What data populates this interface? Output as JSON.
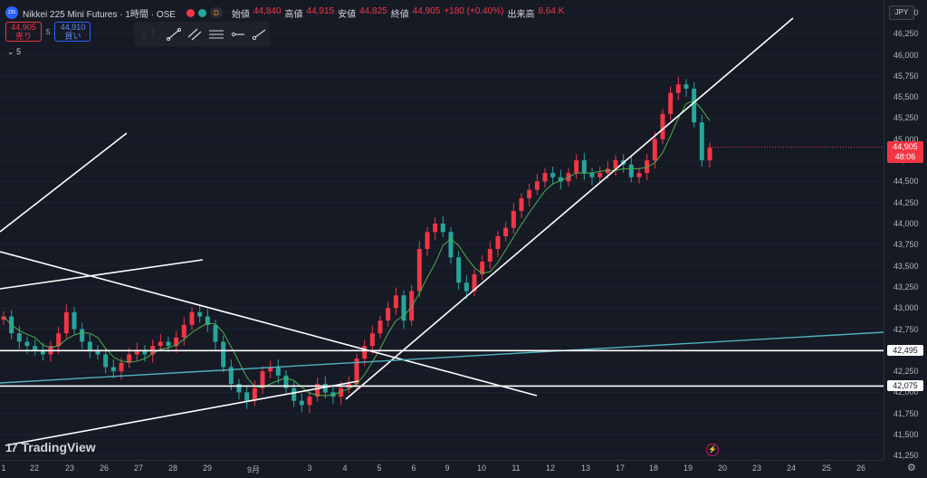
{
  "header": {
    "logo_text": "225",
    "title": "Nikkei 225 Mini Futures · 1時間 · OSE",
    "d_tag": "D",
    "open_label": "始値",
    "open_value": "44,840",
    "high_label": "高値",
    "high_value": "44,915",
    "low_label": "安値",
    "low_value": "44,825",
    "close_label": "終値",
    "close_value": "44,905",
    "change": "+180 (+0.40%)",
    "volume_label": "出来高",
    "volume_value": "8.64 K"
  },
  "trade": {
    "sell_price": "44,905",
    "sell_label": "売り",
    "spread": "5",
    "buy_price": "44,910",
    "buy_label": "買い"
  },
  "indicator_count": "5",
  "currency": "JPY",
  "price_ticks": [
    "46,500",
    "46,250",
    "46,000",
    "45,750",
    "45,500",
    "45,250",
    "45,000",
    "44,750",
    "44,500",
    "44,250",
    "44,000",
    "43,750",
    "43,500",
    "43,250",
    "43,000",
    "42,750",
    "42,500",
    "42,250",
    "42,000",
    "41,750",
    "41,500",
    "41,250"
  ],
  "time_ticks": [
    "1",
    "22",
    "23",
    "26",
    "27",
    "28",
    "29",
    "9月",
    "3",
    "4",
    "5",
    "6",
    "9",
    "10",
    "11",
    "12",
    "13",
    "17",
    "18",
    "19",
    "20",
    "23",
    "24",
    "25",
    "26"
  ],
  "level_badges": [
    "42,495",
    "42,075"
  ],
  "current_price": {
    "price": "44,905",
    "countdown": "48:06"
  },
  "logo_text": "TradingView",
  "colors": {
    "up": "#f23645",
    "down": "#26a69a",
    "ma": "#4caf50",
    "trendline": "#ffffff",
    "channel": "#4fb3bf",
    "background": "#161a25"
  },
  "chart_data": {
    "type": "candlestick",
    "ylim": [
      41200,
      46650
    ],
    "close_series": [
      42900,
      42700,
      42600,
      42550,
      42500,
      42450,
      42550,
      42700,
      42950,
      42750,
      42600,
      42500,
      42450,
      42300,
      42250,
      42350,
      42450,
      42500,
      42450,
      42550,
      42600,
      42550,
      42650,
      42800,
      42950,
      42900,
      42800,
      42600,
      42300,
      42100,
      42000,
      41900,
      42050,
      42250,
      42300,
      42200,
      42050,
      41900,
      41850,
      41950,
      42100,
      42000,
      41950,
      42050,
      42100,
      42400,
      42550,
      42700,
      42850,
      43000,
      43150,
      42850,
      43200,
      43700,
      43900,
      44000,
      43900,
      43600,
      43300,
      43200,
      43400,
      43550,
      43700,
      43850,
      43950,
      44150,
      44300,
      44400,
      44500,
      44600,
      44550,
      44500,
      44600,
      44750,
      44600,
      44550,
      44600,
      44650,
      44750,
      44700,
      44550,
      44600,
      44750,
      45000,
      45300,
      45550,
      45650,
      45600,
      45200,
      44750,
      44900
    ],
    "levels": [
      42495,
      42075
    ]
  }
}
